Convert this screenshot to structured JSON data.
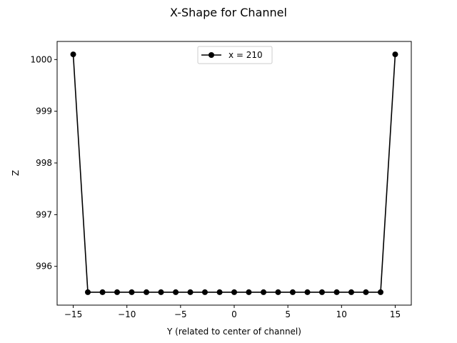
{
  "chart_data": {
    "type": "line",
    "title": "X-Shape for Channel",
    "xlabel": "Y (related to center of channel)",
    "ylabel": "Z",
    "xlim": [
      -16.5,
      16.5
    ],
    "ylim": [
      995.35,
      1100.25
    ],
    "xticks": [
      -15,
      -10,
      -5,
      0,
      5,
      10,
      15
    ],
    "xtick_labels": [
      "−15",
      "−10",
      "−5",
      "0",
      "5",
      "10",
      "15"
    ],
    "yticks": [
      996,
      997,
      998,
      999,
      1000
    ],
    "ytick_labels": [
      "996",
      "997",
      "998",
      "999",
      "1000"
    ],
    "grid": false,
    "legend": {
      "placement": "top-center",
      "entries": [
        "x = 210"
      ]
    },
    "series": [
      {
        "name": "x = 210",
        "color": "#000000",
        "marker": "circle",
        "x": [
          -15,
          -13.64,
          -12.27,
          -10.91,
          -9.55,
          -8.18,
          -6.82,
          -5.45,
          -4.09,
          -2.73,
          -1.36,
          0,
          1.36,
          2.73,
          4.09,
          5.45,
          6.82,
          8.18,
          9.55,
          10.91,
          12.27,
          13.64,
          15
        ],
        "y": [
          1000.1,
          995.5,
          995.5,
          995.5,
          995.5,
          995.5,
          995.5,
          995.5,
          995.5,
          995.5,
          995.5,
          995.5,
          995.5,
          995.5,
          995.5,
          995.5,
          995.5,
          995.5,
          995.5,
          995.5,
          995.5,
          995.5,
          1000.1
        ]
      }
    ]
  }
}
